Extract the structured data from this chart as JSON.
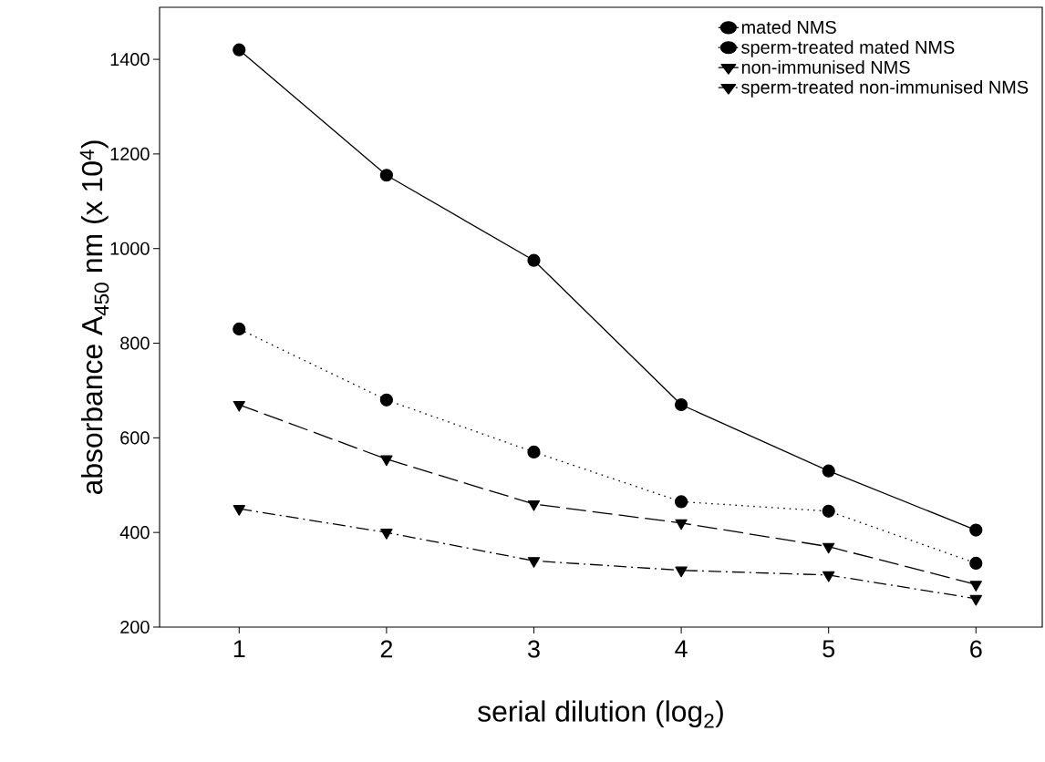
{
  "chart_data": {
    "type": "line",
    "xlabel": "serial dilution  (log$_{2}$)",
    "ylabel": "absorbance A$_{450}$ nm (x 10$^{4}$)",
    "x": [
      1,
      2,
      3,
      4,
      5,
      6
    ],
    "xlim": [
      0.46,
      6.45
    ],
    "xticks": [
      1,
      2,
      3,
      4,
      5,
      6
    ],
    "ylim": [
      200,
      1510
    ],
    "yticks": [
      200,
      400,
      600,
      800,
      1000,
      1200,
      1400
    ],
    "legend": "top right",
    "series": [
      {
        "name": "mated NMS",
        "color": "#000000",
        "marker": "circle",
        "line_style": "solid",
        "values": [
          1420,
          1155,
          975,
          670,
          530,
          405
        ]
      },
      {
        "name": "sperm-treated mated NMS",
        "color": "#000000",
        "marker": "circle",
        "line_style": "dotted",
        "values": [
          830,
          680,
          570,
          465,
          445,
          335
        ]
      },
      {
        "name": "non-immunised NMS",
        "color": "#000000",
        "marker": "triangle",
        "line_style": "dashed",
        "values": [
          670,
          555,
          460,
          420,
          370,
          290
        ]
      },
      {
        "name": "sperm-treated non-immunised NMS",
        "color": "#000000",
        "marker": "triangle",
        "line_style": "dashdot",
        "values": [
          450,
          400,
          340,
          320,
          310,
          260
        ]
      }
    ]
  }
}
